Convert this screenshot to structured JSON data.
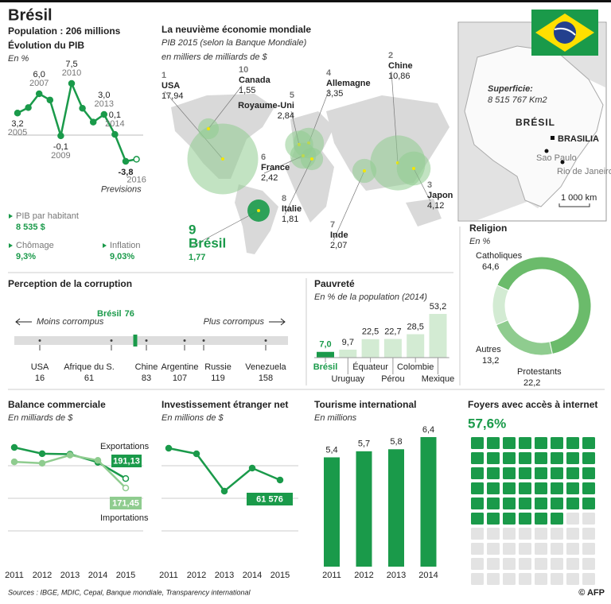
{
  "header": {
    "title": "Brésil",
    "population": "Population : 206 millions"
  },
  "indicators": [
    {
      "label": "PIB par habitant",
      "value": "8 535 $"
    },
    {
      "label": "Chômage",
      "value": "9,3%"
    },
    {
      "label": "Inflation",
      "value": "9,03%"
    }
  ],
  "country_map": {
    "area_label": "Superficie:",
    "area": "8 515 767 Km2",
    "country": "BRÉSIL",
    "capital": "BRASILIA",
    "cities": [
      "Sao Paulo",
      "Rio de Janeiro"
    ],
    "scale": "1 000 km"
  },
  "chart_data": [
    {
      "type": "line",
      "title": "Évolution du PIB",
      "subtitle": "En %",
      "categories": [
        "2005",
        null,
        "2007",
        null,
        "2009",
        "2010",
        null,
        null,
        "2013",
        "2014",
        null,
        "2016"
      ],
      "values": [
        3.2,
        4.0,
        6.0,
        5.1,
        -0.1,
        7.5,
        3.9,
        1.9,
        3.0,
        0.1,
        -3.8,
        -3.5
      ],
      "value_labels": [
        "3,2",
        null,
        "6,0",
        null,
        "-0,1",
        "7,5",
        null,
        null,
        "3,0",
        "0,1",
        "-3,8",
        null
      ],
      "annotation": "Previsions",
      "color": "#1a9a4a"
    },
    {
      "type": "bubble",
      "title": "La neuvième économie mondiale",
      "subtitle": "PIB 2015 (selon la Banque Mondiale)",
      "unit": "en milliers de milliards de $",
      "categories": [
        "USA",
        "Chine",
        "Japon",
        "Allemagne",
        "Royaume-Uni",
        "France",
        "Inde",
        "Italie",
        "Brésil",
        "Canada"
      ],
      "ranks": [
        1,
        2,
        3,
        4,
        5,
        6,
        7,
        8,
        9,
        10
      ],
      "values": [
        17.94,
        10.86,
        4.12,
        3.35,
        2.84,
        2.42,
        2.07,
        1.81,
        1.77,
        1.55
      ],
      "value_labels": [
        "17,94",
        "10,86",
        "4,12",
        "3,35",
        "2,84",
        "2,42",
        "2,07",
        "1,81",
        "1,77",
        "1,55"
      ],
      "color": "#8fcc8f",
      "highlight": "Brésil",
      "highlight_color": "#1a9a4a"
    },
    {
      "type": "pie",
      "donut": true,
      "title": "Religion",
      "subtitle": "En %",
      "categories": [
        "Catholiques",
        "Protestants",
        "Autres"
      ],
      "values": [
        64.6,
        22.2,
        13.2
      ],
      "value_labels": [
        "64,6",
        "22,2",
        "13,2"
      ],
      "colors": [
        "#6bbb6b",
        "#8fcc8f",
        "#d3ebd3"
      ]
    },
    {
      "type": "strip",
      "title": "Perception de la corruption",
      "left_label": "Moins corrompus",
      "right_label": "Plus corrompus",
      "categories": [
        "USA",
        "Afrique du S.",
        "Chine",
        "Argentine",
        "Russie",
        "Venezuela"
      ],
      "values": [
        16,
        61,
        83,
        107,
        119,
        158
      ],
      "highlight": {
        "name": "Brésil",
        "value": 76
      },
      "xlim": [
        0,
        172
      ],
      "color": "#1a9a4a"
    },
    {
      "type": "bar",
      "title": "Pauvreté",
      "subtitle": "En % de la population (2014)",
      "categories": [
        "Brésil",
        "Uruguay",
        "Équateur",
        "Pérou",
        "Colombie",
        "Mexique"
      ],
      "values": [
        7.0,
        9.7,
        22.5,
        22.7,
        28.5,
        53.2
      ],
      "value_labels": [
        "7,0",
        "9,7",
        "22,5",
        "22,7",
        "28,5",
        "53,2"
      ],
      "colors": [
        "#1a9a4a",
        "#d3ebd3",
        "#d3ebd3",
        "#d3ebd3",
        "#d3ebd3",
        "#d3ebd3"
      ],
      "highlight": "Brésil"
    },
    {
      "type": "line",
      "title": "Balance commerciale",
      "subtitle": "En milliards de $",
      "categories": [
        2011,
        2012,
        2013,
        2014,
        2015
      ],
      "series": [
        {
          "name": "Exportations",
          "color": "#1a9a4a",
          "values": [
            256,
            243,
            242,
            225,
            191.13
          ],
          "value_labels": [
            null,
            null,
            null,
            null,
            "191,13"
          ]
        },
        {
          "name": "Importations",
          "color": "#8fcc8f",
          "values": [
            226,
            223,
            240,
            229,
            171.45
          ],
          "value_labels": [
            null,
            null,
            null,
            null,
            "171,45"
          ]
        }
      ]
    },
    {
      "type": "line",
      "title": "Investissement étranger net",
      "subtitle": "En millions de $",
      "categories": [
        2011,
        2012,
        2013,
        2014,
        2015
      ],
      "values": [
        66660,
        65770,
        59800,
        63480,
        61576
      ],
      "value_labels": [
        null,
        null,
        null,
        null,
        "61 576"
      ],
      "color": "#1a9a4a"
    },
    {
      "type": "bar",
      "title": "Tourisme international",
      "subtitle": "En millions",
      "categories": [
        2011,
        2012,
        2013,
        2014
      ],
      "values": [
        5.4,
        5.7,
        5.8,
        6.4
      ],
      "value_labels": [
        "5,4",
        "5,7",
        "5,8",
        "6,4"
      ],
      "color": "#1a9a4a"
    },
    {
      "type": "waffle",
      "title": "Foyers avec accès à internet",
      "value": 57.6,
      "value_label": "57,6%",
      "color": "#1a9a4a",
      "empty_color": "#e3e3e3"
    }
  ],
  "sources": "Sources : IBGE, MDIC, Cepal, Banque mondiale, Transparency international",
  "credit": "© AFP"
}
